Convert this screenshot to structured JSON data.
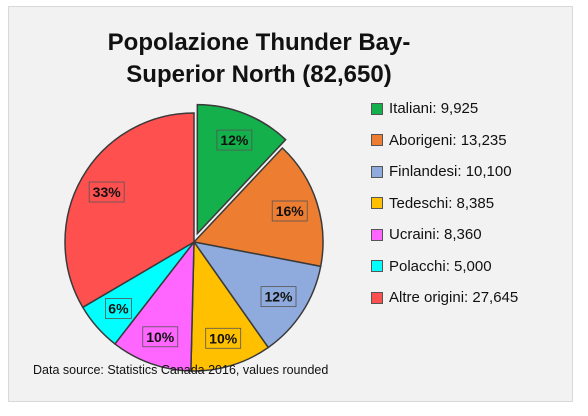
{
  "chart_data": {
    "type": "pie",
    "title": "Popolazione Thunder Bay-Superior North (82,650)",
    "series": [
      {
        "name": "Italiani",
        "value": 9925,
        "label": "12%",
        "legend": "Italiani: 9,925",
        "color": "#13b04c",
        "exploded": true
      },
      {
        "name": "Aborigeni",
        "value": 13235,
        "label": "16%",
        "legend": "Aborigeni: 13,235",
        "color": "#ed7d31",
        "exploded": false
      },
      {
        "name": "Finlandesi",
        "value": 10100,
        "label": "12%",
        "legend": "Finlandesi: 10,100",
        "color": "#8faadc",
        "exploded": false
      },
      {
        "name": "Tedeschi",
        "value": 8385,
        "label": "10%",
        "legend": "Tedeschi: 8,385",
        "color": "#ffc000",
        "exploded": false
      },
      {
        "name": "Ucraini",
        "value": 8360,
        "label": "10%",
        "legend": "Ucraini: 8,360",
        "color": "#ff66ff",
        "exploded": false
      },
      {
        "name": "Polacchi",
        "value": 5000,
        "label": "6%",
        "legend": "Polacchi: 5,000",
        "color": "#00ffff",
        "exploded": false
      },
      {
        "name": "Altre origini",
        "value": 27645,
        "label": "33%",
        "legend": "Altre origini: 27,645",
        "color": "#ff5050",
        "exploded": false
      }
    ],
    "legend_position": "right",
    "source": "Data source: Statistics Canada 2016, values rounded"
  }
}
